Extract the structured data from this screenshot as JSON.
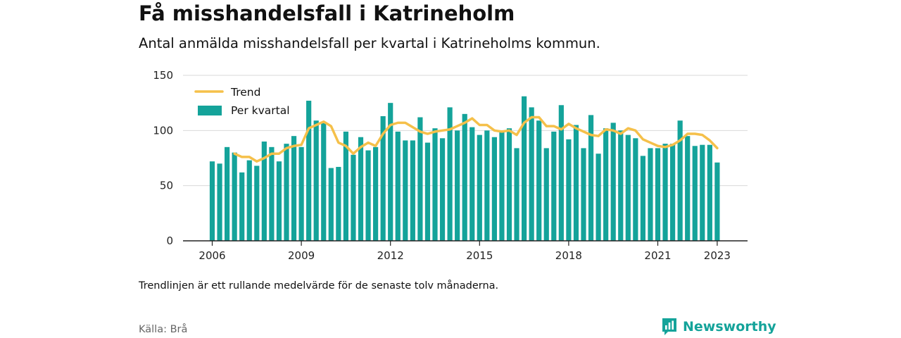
{
  "header": {
    "title": "Få misshandelsfall i Katrineholm",
    "subtitle": "Antal anmälda misshandelsfall per kvartal i Katrineholms kommun."
  },
  "footer": {
    "note": "Trendlinjen är ett rullande medelvärde för de senaste tolv månaderna.",
    "source": "Källa: Brå",
    "brand": "Newsworthy",
    "brand_icon": "bar-chart-speech-bubble-icon"
  },
  "colors": {
    "bars": "#14a39a",
    "trend": "#f5c04a",
    "grid": "#d9d9d9",
    "axis": "#222222",
    "brand": "#14a39a"
  },
  "chart_data": {
    "type": "bar",
    "title": "Få misshandelsfall i Katrineholm",
    "subtitle": "Antal anmälda misshandelsfall per kvartal i Katrineholms kommun.",
    "xlabel": "",
    "ylabel": "",
    "ylim": [
      0,
      150
    ],
    "y_ticks": [
      0,
      50,
      100,
      150
    ],
    "x_ticks": [
      "2006",
      "2009",
      "2012",
      "2015",
      "2018",
      "2021",
      "2023"
    ],
    "grid": "horizontal",
    "legend": "top-left",
    "start": "2006 Q1",
    "series": [
      {
        "name": "Per kvartal",
        "kind": "bar",
        "values": [
          72,
          70,
          85,
          80,
          62,
          73,
          68,
          90,
          85,
          72,
          88,
          95,
          85,
          127,
          109,
          108,
          66,
          67,
          99,
          78,
          94,
          82,
          85,
          113,
          125,
          99,
          91,
          91,
          112,
          89,
          102,
          93,
          121,
          100,
          115,
          103,
          96,
          100,
          94,
          100,
          102,
          84,
          131,
          121,
          109,
          84,
          99,
          123,
          92,
          105,
          84,
          114,
          79,
          102,
          107,
          100,
          96,
          93,
          77,
          84,
          84,
          88,
          88,
          109,
          95,
          86,
          87,
          87,
          71
        ]
      },
      {
        "name": "Trend",
        "kind": "line",
        "values": [
          null,
          null,
          null,
          79,
          76,
          76,
          72,
          75,
          79,
          79,
          84,
          86,
          87,
          102,
          105,
          108,
          104,
          89,
          86,
          79,
          85,
          89,
          86,
          97,
          105,
          107,
          107,
          103,
          99,
          97,
          99,
          100,
          101,
          104,
          107,
          111,
          105,
          105,
          100,
          99,
          100,
          96,
          107,
          112,
          112,
          104,
          104,
          101,
          106,
          102,
          99,
          96,
          95,
          101,
          100,
          97,
          102,
          100,
          92,
          89,
          86,
          85,
          87,
          91,
          97,
          97,
          96,
          91,
          84
        ]
      }
    ]
  }
}
